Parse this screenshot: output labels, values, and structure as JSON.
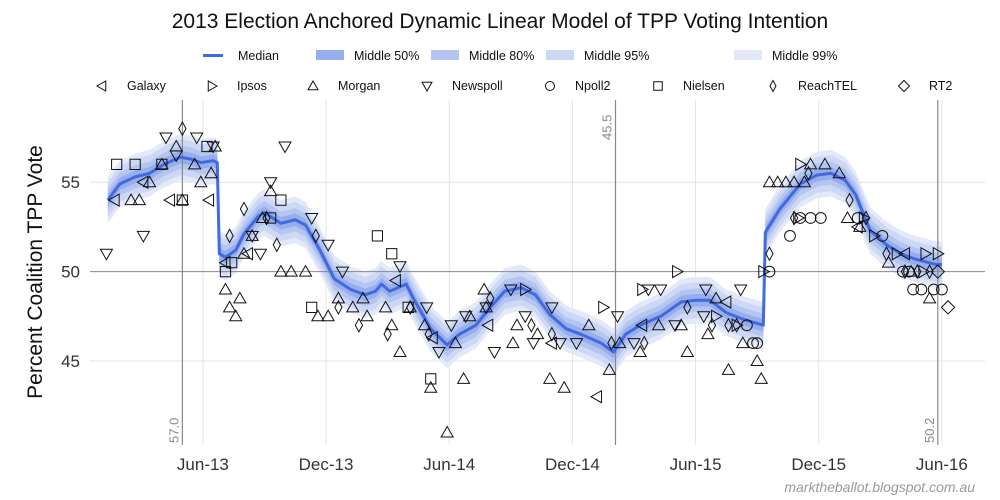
{
  "chart_data": {
    "type": "line",
    "title": "2013 Election Anchored Dynamic Linear Model of TPP Voting Intention",
    "xlabel": "",
    "ylabel": "Percent Coalition TPP Vote",
    "x_units": "months since Jan 2013",
    "xlim": [
      -0.5,
      43.1
    ],
    "ylim": [
      40.3,
      59.6
    ],
    "grid": true,
    "x_ticks": [
      {
        "value": 5,
        "label": "Jun-13"
      },
      {
        "value": 11,
        "label": "Dec-13"
      },
      {
        "value": 17,
        "label": "Jun-14"
      },
      {
        "value": 23,
        "label": "Dec-14"
      },
      {
        "value": 29,
        "label": "Jun-15"
      },
      {
        "value": 35,
        "label": "Dec-15"
      },
      {
        "value": 41,
        "label": "Jun-16"
      }
    ],
    "y_ticks": [
      {
        "value": 45,
        "label": "45"
      },
      {
        "value": 50,
        "label": "50"
      },
      {
        "value": 55,
        "label": "55"
      }
    ],
    "hline": 50,
    "vlines": [
      {
        "x": 4.0,
        "label": "57.0"
      },
      {
        "x": 25.1,
        "label": "45.5"
      },
      {
        "x": 40.8,
        "label": "50.2"
      }
    ],
    "legend_placement": "top-center",
    "legend_bands": [
      {
        "name": "Median",
        "color": "#4169e1",
        "kind": "line"
      },
      {
        "name": "Middle 50%",
        "color": "#97aeec",
        "kind": "band",
        "halfwidth": 0.35
      },
      {
        "name": "Middle 80%",
        "color": "#b4c5f1",
        "kind": "band",
        "halfwidth": 0.65
      },
      {
        "name": "Middle 95%",
        "color": "#cdd8f5",
        "kind": "band",
        "halfwidth": 1.0
      },
      {
        "name": "Middle 99%",
        "color": "#e3e9f9",
        "kind": "band",
        "halfwidth": 1.3
      }
    ],
    "legend_pollsters": [
      {
        "name": "Galaxy",
        "marker": "triangle-left"
      },
      {
        "name": "Ipsos",
        "marker": "triangle-right"
      },
      {
        "name": "Morgan",
        "marker": "triangle-up"
      },
      {
        "name": "Newspoll",
        "marker": "triangle-down"
      },
      {
        "name": "Npoll2",
        "marker": "circle"
      },
      {
        "name": "Nielsen",
        "marker": "square"
      },
      {
        "name": "ReachTEL",
        "marker": "thin-diamond"
      },
      {
        "name": "RT2",
        "marker": "diamond"
      }
    ],
    "median": {
      "x": [
        0.37,
        0.95,
        1.7,
        2.4,
        3.1,
        3.9,
        4.4,
        4.9,
        5.5,
        5.7,
        5.8,
        6.1,
        6.6,
        7.0,
        7.7,
        8.0,
        8.8,
        9.5,
        10.0,
        10.7,
        11.4,
        12.2,
        12.9,
        13.4,
        13.7,
        14.1,
        14.9,
        15.3,
        16.1,
        16.9,
        17.5,
        18.3,
        19.0,
        19.7,
        20.5,
        21.2,
        21.9,
        22.7,
        23.4,
        24.4,
        25.0,
        25.6,
        26.3,
        27.3,
        28.3,
        29.0,
        29.7,
        30.5,
        31.4,
        32.3,
        32.4,
        33.1,
        34.1,
        34.9,
        35.6,
        36.3,
        36.8,
        37.5,
        38.3,
        39.0,
        39.7,
        40.7,
        41.0
      ],
      "y": [
        54.0,
        54.9,
        55.3,
        55.5,
        56.0,
        56.4,
        56.3,
        56.1,
        56.2,
        56.1,
        51.0,
        50.8,
        51.2,
        52.1,
        53.1,
        53.3,
        52.7,
        52.9,
        52.6,
        51.2,
        49.6,
        49.0,
        48.7,
        48.9,
        49.3,
        48.9,
        49.3,
        48.4,
        46.8,
        45.9,
        46.5,
        47.0,
        48.0,
        48.9,
        49.1,
        48.7,
        47.6,
        46.8,
        46.5,
        46.0,
        45.5,
        46.5,
        47.0,
        47.5,
        48.3,
        48.4,
        48.4,
        47.7,
        47.3,
        47.0,
        52.2,
        53.5,
        54.9,
        55.4,
        55.5,
        55.1,
        54.3,
        52.3,
        51.5,
        51.0,
        50.7,
        50.4,
        50.4
      ]
    },
    "polls": {
      "Galaxy": [
        [
          0.7,
          54.0
        ],
        [
          3.4,
          54.0
        ],
        [
          5.3,
          54.0
        ],
        [
          2.1,
          55.0
        ],
        [
          6.1,
          50.5
        ],
        [
          7.2,
          51.0
        ],
        [
          14.4,
          49.5
        ],
        [
          16.2,
          46.3
        ],
        [
          18.9,
          47.0
        ],
        [
          22.0,
          46.0
        ],
        [
          24.2,
          43.0
        ],
        [
          26.4,
          47.0
        ],
        [
          30.5,
          48.3
        ],
        [
          36.9,
          52.5
        ],
        [
          39.2,
          51.0
        ]
      ],
      "Ipsos": [
        [
          20.7,
          49.0
        ],
        [
          24.5,
          48.0
        ],
        [
          26.4,
          49.0
        ],
        [
          28.1,
          50.0
        ],
        [
          30.0,
          47.5
        ],
        [
          31.0,
          47.0
        ],
        [
          32.3,
          50.0
        ],
        [
          34.0,
          53.0
        ],
        [
          34.1,
          56.0
        ],
        [
          37.2,
          53.0
        ],
        [
          37.7,
          52.0
        ],
        [
          38.8,
          51.0
        ],
        [
          40.2,
          51.0
        ],
        [
          40.8,
          51.0
        ],
        [
          40.1,
          50.0
        ]
      ],
      "Morgan": [
        [
          1.5,
          54.0
        ],
        [
          1.9,
          54.0
        ],
        [
          2.4,
          55.0
        ],
        [
          3.0,
          56.0
        ],
        [
          3.7,
          57.0
        ],
        [
          4.0,
          54.0
        ],
        [
          4.6,
          56.0
        ],
        [
          4.9,
          55.0
        ],
        [
          5.4,
          55.5
        ],
        [
          5.6,
          57.0
        ],
        [
          6.1,
          49.0
        ],
        [
          6.3,
          48.0
        ],
        [
          6.6,
          47.5
        ],
        [
          6.8,
          48.5
        ],
        [
          7.0,
          51.0
        ],
        [
          7.4,
          52.0
        ],
        [
          7.9,
          53.0
        ],
        [
          8.3,
          54.5
        ],
        [
          8.8,
          50.0
        ],
        [
          9.3,
          50.0
        ],
        [
          10.0,
          50.0
        ],
        [
          10.6,
          47.5
        ],
        [
          11.1,
          47.5
        ],
        [
          11.6,
          48.5
        ],
        [
          12.3,
          48.0
        ],
        [
          12.8,
          48.5
        ],
        [
          13.0,
          47.5
        ],
        [
          13.9,
          48.0
        ],
        [
          14.2,
          47.0
        ],
        [
          14.6,
          45.5
        ],
        [
          15.1,
          48.0
        ],
        [
          15.8,
          47.0
        ],
        [
          16.1,
          43.5
        ],
        [
          16.9,
          41.0
        ],
        [
          17.3,
          46.0
        ],
        [
          17.7,
          44.0
        ],
        [
          18.0,
          47.5
        ],
        [
          18.7,
          49.0
        ],
        [
          18.8,
          48.0
        ],
        [
          20.1,
          46.0
        ],
        [
          20.3,
          47.0
        ],
        [
          21.3,
          46.5
        ],
        [
          21.9,
          44.0
        ],
        [
          22.6,
          43.5
        ],
        [
          23.8,
          47.0
        ],
        [
          24.8,
          44.5
        ],
        [
          25.3,
          46.0
        ],
        [
          26.3,
          45.5
        ],
        [
          27.2,
          47.0
        ],
        [
          28.3,
          47.0
        ],
        [
          28.6,
          45.5
        ],
        [
          29.6,
          46.5
        ],
        [
          30.0,
          48.5
        ],
        [
          30.6,
          44.5
        ],
        [
          31.3,
          46.0
        ],
        [
          32.0,
          45.0
        ],
        [
          32.2,
          44.0
        ],
        [
          32.6,
          55.0
        ],
        [
          33.0,
          55.0
        ],
        [
          33.4,
          55.0
        ],
        [
          33.8,
          55.0
        ],
        [
          34.3,
          55.0
        ],
        [
          34.6,
          56.0
        ],
        [
          35.3,
          56.0
        ],
        [
          36.0,
          55.5
        ],
        [
          36.4,
          53.0
        ],
        [
          37.0,
          52.5
        ],
        [
          38.4,
          50.5
        ],
        [
          39.5,
          50.0
        ],
        [
          40.4,
          48.5
        ]
      ],
      "Newspoll": [
        [
          0.3,
          51.0
        ],
        [
          2.1,
          52.0
        ],
        [
          3.2,
          57.5
        ],
        [
          3.7,
          56.5
        ],
        [
          4.7,
          57.5
        ],
        [
          5.5,
          57.0
        ],
        [
          7.4,
          52.0
        ],
        [
          7.8,
          51.0
        ],
        [
          8.3,
          55.0
        ],
        [
          9.0,
          57.0
        ],
        [
          10.3,
          53.0
        ],
        [
          11.1,
          51.5
        ],
        [
          11.8,
          50.0
        ],
        [
          14.6,
          50.3
        ],
        [
          15.9,
          48.0
        ],
        [
          16.5,
          45.5
        ],
        [
          17.1,
          47.0
        ],
        [
          17.8,
          47.5
        ],
        [
          18.8,
          48.0
        ],
        [
          19.2,
          45.5
        ],
        [
          20.0,
          49.0
        ],
        [
          20.7,
          47.5
        ],
        [
          21.1,
          46.0
        ],
        [
          22.0,
          48.0
        ],
        [
          22.4,
          46.0
        ],
        [
          23.2,
          46.0
        ],
        [
          25.2,
          47.5
        ],
        [
          26.0,
          46.0
        ],
        [
          26.7,
          49.0
        ],
        [
          27.3,
          49.0
        ],
        [
          28.0,
          47.0
        ],
        [
          29.4,
          47.5
        ],
        [
          29.5,
          49.0
        ],
        [
          31.2,
          49.0
        ]
      ],
      "Npoll2": [
        [
          31.5,
          47.0
        ],
        [
          31.8,
          46.0
        ],
        [
          32.0,
          46.0
        ],
        [
          32.6,
          50.0
        ],
        [
          33.6,
          52.0
        ],
        [
          34.1,
          53.0
        ],
        [
          34.6,
          53.0
        ],
        [
          35.1,
          53.0
        ],
        [
          36.9,
          53.0
        ],
        [
          38.1,
          52.0
        ],
        [
          39.1,
          50.0
        ],
        [
          39.4,
          50.0
        ],
        [
          39.6,
          49.0
        ],
        [
          40.0,
          49.0
        ],
        [
          40.6,
          49.0
        ],
        [
          41.0,
          49.0
        ]
      ],
      "Nielsen": [
        [
          0.8,
          56.0
        ],
        [
          1.7,
          56.0
        ],
        [
          3.0,
          56.0
        ],
        [
          4.0,
          54.0
        ],
        [
          5.2,
          57.0
        ],
        [
          6.1,
          50.0
        ],
        [
          6.4,
          50.5
        ],
        [
          8.3,
          53.0
        ],
        [
          8.8,
          54.0
        ],
        [
          10.3,
          48.0
        ],
        [
          13.5,
          52.0
        ],
        [
          14.2,
          51.0
        ],
        [
          15.0,
          48.0
        ],
        [
          16.1,
          44.0
        ]
      ],
      "ReachTEL": [
        [
          4.0,
          58.0
        ],
        [
          6.3,
          52.0
        ],
        [
          7.0,
          53.5
        ],
        [
          8.1,
          53.0
        ],
        [
          8.6,
          51.5
        ],
        [
          10.5,
          52.0
        ],
        [
          11.6,
          48.0
        ],
        [
          12.6,
          47.0
        ],
        [
          14.0,
          46.5
        ],
        [
          15.1,
          48.0
        ],
        [
          16.0,
          46.5
        ],
        [
          19.0,
          48.5
        ],
        [
          21.0,
          47.0
        ],
        [
          22.0,
          46.5
        ],
        [
          24.9,
          46.0
        ],
        [
          26.5,
          46.0
        ],
        [
          28.6,
          48.0
        ],
        [
          29.8,
          47.0
        ],
        [
          30.6,
          47.0
        ],
        [
          31.0,
          47.0
        ],
        [
          32.6,
          51.0
        ],
        [
          33.8,
          53.0
        ],
        [
          34.5,
          55.5
        ],
        [
          36.5,
          54.0
        ],
        [
          37.3,
          53.0
        ],
        [
          38.3,
          51.0
        ],
        [
          39.2,
          50.0
        ],
        [
          39.8,
          50.0
        ],
        [
          40.4,
          50.0
        ]
      ],
      "RT2": [
        [
          40.8,
          50.0
        ],
        [
          41.3,
          48.0
        ]
      ]
    }
  },
  "footer": {
    "credit": "marktheballot.blogspot.com.au"
  }
}
